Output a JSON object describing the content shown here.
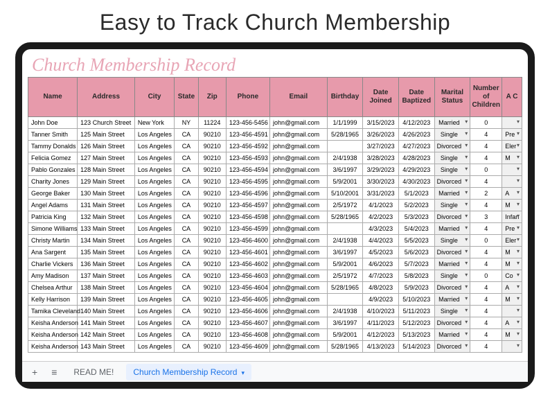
{
  "page": {
    "headline": "Easy to Track Church Membership"
  },
  "doc": {
    "title": "Church Membership Record"
  },
  "colors": {
    "header_bg": "#e79aab",
    "tablet_border": "#1a1a1a",
    "active_tab": "#1a73e8",
    "script_title": "#e8a5b5"
  },
  "table": {
    "columns": [
      "Name",
      "Address",
      "City",
      "State",
      "Zip",
      "Phone",
      "Email",
      "Birthday",
      "Date Joined",
      "Date Baptized",
      "Marital Status",
      "Number of Children",
      "A C"
    ],
    "rows": [
      {
        "name": "John Doe",
        "address": "123 Church Street",
        "city": "New York",
        "state": "NY",
        "zip": "11224",
        "phone": "123-456-5456",
        "email": "john@gmail.com",
        "birthday": "1/1/1999",
        "joined": "3/15/2023",
        "baptized": "4/12/2023",
        "marital": "Married",
        "children": "0",
        "extra": ""
      },
      {
        "name": "Tanner Smith",
        "address": "125 Main Street",
        "city": "Los Angeles",
        "state": "CA",
        "zip": "90210",
        "phone": "123-456-4591",
        "email": "john@gmail.com",
        "birthday": "5/28/1965",
        "joined": "3/26/2023",
        "baptized": "4/26/2023",
        "marital": "Single",
        "children": "4",
        "extra": "Pre"
      },
      {
        "name": "Tammy Donalds",
        "address": "126 Main Street",
        "city": "Los Angeles",
        "state": "CA",
        "zip": "90210",
        "phone": "123-456-4592",
        "email": "john@gmail.com",
        "birthday": "",
        "joined": "3/27/2023",
        "baptized": "4/27/2023",
        "marital": "Divorced",
        "children": "4",
        "extra": "Eler"
      },
      {
        "name": "Felicia Gomez",
        "address": "127 Main Street",
        "city": "Los Angeles",
        "state": "CA",
        "zip": "90210",
        "phone": "123-456-4593",
        "email": "john@gmail.com",
        "birthday": "2/4/1938",
        "joined": "3/28/2023",
        "baptized": "4/28/2023",
        "marital": "Single",
        "children": "4",
        "extra": "M"
      },
      {
        "name": "Pablo Gonzales",
        "address": "128 Main Street",
        "city": "Los Angeles",
        "state": "CA",
        "zip": "90210",
        "phone": "123-456-4594",
        "email": "john@gmail.com",
        "birthday": "3/6/1997",
        "joined": "3/29/2023",
        "baptized": "4/29/2023",
        "marital": "Single",
        "children": "0",
        "extra": ""
      },
      {
        "name": "Charity Jones",
        "address": "129 Main Street",
        "city": "Los Angeles",
        "state": "CA",
        "zip": "90210",
        "phone": "123-456-4595",
        "email": "john@gmail.com",
        "birthday": "5/9/2001",
        "joined": "3/30/2023",
        "baptized": "4/30/2023",
        "marital": "Divorced",
        "children": "4",
        "extra": ""
      },
      {
        "name": "George Baker",
        "address": "130 Main Street",
        "city": "Los Angeles",
        "state": "CA",
        "zip": "90210",
        "phone": "123-456-4596",
        "email": "john@gmail.com",
        "birthday": "5/10/2001",
        "joined": "3/31/2023",
        "baptized": "5/1/2023",
        "marital": "Married",
        "children": "2",
        "extra": "A"
      },
      {
        "name": "Angel Adams",
        "address": "131 Main Street",
        "city": "Los Angeles",
        "state": "CA",
        "zip": "90210",
        "phone": "123-456-4597",
        "email": "john@gmail.com",
        "birthday": "2/5/1972",
        "joined": "4/1/2023",
        "baptized": "5/2/2023",
        "marital": "Single",
        "children": "4",
        "extra": "M"
      },
      {
        "name": "Patricia King",
        "address": "132 Main Street",
        "city": "Los Angeles",
        "state": "CA",
        "zip": "90210",
        "phone": "123-456-4598",
        "email": "john@gmail.com",
        "birthday": "5/28/1965",
        "joined": "4/2/2023",
        "baptized": "5/3/2023",
        "marital": "Divorced",
        "children": "3",
        "extra": "Infan"
      },
      {
        "name": "Simone Williams",
        "address": "133 Main Street",
        "city": "Los Angeles",
        "state": "CA",
        "zip": "90210",
        "phone": "123-456-4599",
        "email": "john@gmail.com",
        "birthday": "",
        "joined": "4/3/2023",
        "baptized": "5/4/2023",
        "marital": "Married",
        "children": "4",
        "extra": "Pre"
      },
      {
        "name": "Christy Martin",
        "address": "134 Main Street",
        "city": "Los Angeles",
        "state": "CA",
        "zip": "90210",
        "phone": "123-456-4600",
        "email": "john@gmail.com",
        "birthday": "2/4/1938",
        "joined": "4/4/2023",
        "baptized": "5/5/2023",
        "marital": "Single",
        "children": "0",
        "extra": "Eler"
      },
      {
        "name": "Ana Sargent",
        "address": "135 Main Street",
        "city": "Los Angeles",
        "state": "CA",
        "zip": "90210",
        "phone": "123-456-4601",
        "email": "john@gmail.com",
        "birthday": "3/6/1997",
        "joined": "4/5/2023",
        "baptized": "5/6/2023",
        "marital": "Divorced",
        "children": "4",
        "extra": "M"
      },
      {
        "name": "Charlie Vickers",
        "address": "136 Main Street",
        "city": "Los Angeles",
        "state": "CA",
        "zip": "90210",
        "phone": "123-456-4602",
        "email": "john@gmail.com",
        "birthday": "5/9/2001",
        "joined": "4/6/2023",
        "baptized": "5/7/2023",
        "marital": "Married",
        "children": "4",
        "extra": "M"
      },
      {
        "name": "Amy Madison",
        "address": "137 Main Street",
        "city": "Los Angeles",
        "state": "CA",
        "zip": "90210",
        "phone": "123-456-4603",
        "email": "john@gmail.com",
        "birthday": "2/5/1972",
        "joined": "4/7/2023",
        "baptized": "5/8/2023",
        "marital": "Single",
        "children": "0",
        "extra": "Co"
      },
      {
        "name": "Chelsea Arthur",
        "address": "138 Main Street",
        "city": "Los Angeles",
        "state": "CA",
        "zip": "90210",
        "phone": "123-456-4604",
        "email": "john@gmail.com",
        "birthday": "5/28/1965",
        "joined": "4/8/2023",
        "baptized": "5/9/2023",
        "marital": "Divorced",
        "children": "4",
        "extra": "A"
      },
      {
        "name": "Kelly Harrison",
        "address": "139 Main Street",
        "city": "Los Angeles",
        "state": "CA",
        "zip": "90210",
        "phone": "123-456-4605",
        "email": "john@gmail.com",
        "birthday": "",
        "joined": "4/9/2023",
        "baptized": "5/10/2023",
        "marital": "Married",
        "children": "4",
        "extra": "M"
      },
      {
        "name": "Tamika Cleveland",
        "address": "140 Main Street",
        "city": "Los Angeles",
        "state": "CA",
        "zip": "90210",
        "phone": "123-456-4606",
        "email": "john@gmail.com",
        "birthday": "2/4/1938",
        "joined": "4/10/2023",
        "baptized": "5/11/2023",
        "marital": "Single",
        "children": "4",
        "extra": ""
      },
      {
        "name": "Keisha Anderson",
        "address": "141 Main Street",
        "city": "Los Angeles",
        "state": "CA",
        "zip": "90210",
        "phone": "123-456-4607",
        "email": "john@gmail.com",
        "birthday": "3/6/1997",
        "joined": "4/11/2023",
        "baptized": "5/12/2023",
        "marital": "Divorced",
        "children": "4",
        "extra": "A"
      },
      {
        "name": "Keisha Anderson",
        "address": "142 Main Street",
        "city": "Los Angeles",
        "state": "CA",
        "zip": "90210",
        "phone": "123-456-4608",
        "email": "john@gmail.com",
        "birthday": "5/9/2001",
        "joined": "4/12/2023",
        "baptized": "5/13/2023",
        "marital": "Married",
        "children": "4",
        "extra": "M"
      },
      {
        "name": "Keisha Anderson",
        "address": "143 Main Street",
        "city": "Los Angeles",
        "state": "CA",
        "zip": "90210",
        "phone": "123-456-4609",
        "email": "john@gmail.com",
        "birthday": "5/28/1965",
        "joined": "4/13/2023",
        "baptized": "5/14/2023",
        "marital": "Divorced",
        "children": "4",
        "extra": ""
      }
    ]
  },
  "tabs": {
    "add_label": "+",
    "menu_label": "≡",
    "readme": "READ ME!",
    "active": "Church Membership Record"
  }
}
